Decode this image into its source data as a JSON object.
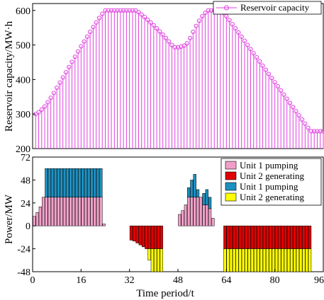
{
  "chart_data": [
    {
      "type": "line",
      "ylabel": "Reservoir capacity/MW·h",
      "ylim": [
        200,
        620
      ],
      "yticks": [
        200,
        300,
        400,
        500,
        600
      ],
      "xlim": [
        0,
        96
      ],
      "grid": false,
      "legend_position": "top-right",
      "series": [
        {
          "name": "Reservoir capacity",
          "color": "#e040e0",
          "marker": "circle",
          "x": [
            1,
            2,
            3,
            4,
            5,
            6,
            7,
            8,
            9,
            10,
            11,
            12,
            13,
            14,
            15,
            16,
            17,
            18,
            19,
            20,
            21,
            22,
            23,
            24,
            25,
            26,
            27,
            28,
            29,
            30,
            31,
            32,
            33,
            34,
            35,
            36,
            37,
            38,
            39,
            40,
            41,
            42,
            43,
            44,
            45,
            46,
            47,
            48,
            49,
            50,
            51,
            52,
            53,
            54,
            55,
            56,
            57,
            58,
            59,
            60,
            61,
            62,
            63,
            64,
            65,
            66,
            67,
            68,
            69,
            70,
            71,
            72,
            73,
            74,
            75,
            76,
            77,
            78,
            79,
            80,
            81,
            82,
            83,
            84,
            85,
            86,
            87,
            88,
            89,
            90,
            91,
            92,
            93,
            94,
            95,
            96
          ],
          "values": [
            300,
            305,
            313,
            322,
            334,
            347,
            361,
            376,
            391,
            406,
            421,
            436,
            451,
            466,
            481,
            496,
            510,
            524,
            538,
            552,
            565,
            578,
            590,
            600,
            600,
            600,
            600,
            600,
            600,
            600,
            600,
            600,
            600,
            600,
            595,
            588,
            581,
            573,
            565,
            557,
            548,
            539,
            530,
            520,
            510,
            500,
            493,
            493,
            495,
            498,
            505,
            520,
            538,
            555,
            570,
            583,
            593,
            600,
            600,
            600,
            600,
            600,
            593,
            583,
            572,
            560,
            548,
            536,
            524,
            512,
            500,
            488,
            476,
            464,
            452,
            440,
            428,
            416,
            404,
            392,
            380,
            368,
            356,
            344,
            332,
            320,
            308,
            296,
            284,
            272,
            260,
            250,
            250,
            250,
            250,
            250
          ]
        }
      ]
    },
    {
      "type": "bar",
      "xlabel": "Time period/t",
      "ylabel": "Power/MW",
      "ylim": [
        -48,
        72
      ],
      "yticks": [
        -48,
        -24,
        0,
        24,
        48,
        72
      ],
      "xlim": [
        0,
        96
      ],
      "xticks": [
        0,
        16,
        32,
        48,
        64,
        80,
        96
      ],
      "stacked": true,
      "grid": false,
      "legend_position": "top-right",
      "x": [
        1,
        2,
        3,
        4,
        5,
        6,
        7,
        8,
        9,
        10,
        11,
        12,
        13,
        14,
        15,
        16,
        17,
        18,
        19,
        20,
        21,
        22,
        23,
        24,
        25,
        26,
        27,
        28,
        29,
        30,
        31,
        32,
        33,
        34,
        35,
        36,
        37,
        38,
        39,
        40,
        41,
        42,
        43,
        44,
        45,
        46,
        47,
        48,
        49,
        50,
        51,
        52,
        53,
        54,
        55,
        56,
        57,
        58,
        59,
        60,
        61,
        62,
        63,
        64,
        65,
        66,
        67,
        68,
        69,
        70,
        71,
        72,
        73,
        74,
        75,
        76,
        77,
        78,
        79,
        80,
        81,
        82,
        83,
        84,
        85,
        86,
        87,
        88,
        89,
        90,
        91,
        92,
        93,
        94,
        95,
        96
      ],
      "series": [
        {
          "name": "Unit 1 pumping",
          "color": "#f0a0c8",
          "values": [
            10,
            14,
            20,
            30,
            30,
            30,
            30,
            30,
            30,
            30,
            30,
            30,
            30,
            30,
            30,
            30,
            30,
            30,
            30,
            30,
            30,
            30,
            30,
            2,
            0,
            0,
            0,
            0,
            0,
            0,
            0,
            0,
            0,
            0,
            0,
            0,
            0,
            0,
            0,
            0,
            0,
            0,
            0,
            0,
            0,
            0,
            0,
            0,
            0,
            0,
            0,
            0,
            0,
            0,
            0,
            0,
            0,
            0,
            0,
            0,
            0,
            0,
            0,
            0,
            0,
            0,
            0,
            0,
            0,
            0,
            0,
            0,
            0,
            0,
            0,
            0,
            0,
            0,
            0,
            0,
            0,
            0,
            0,
            0,
            0,
            0,
            0,
            0,
            0,
            0,
            0,
            0,
            0,
            0,
            0,
            0
          ]
        },
        {
          "name": "Unit 2 generating",
          "color": "#e00000",
          "values": [
            0,
            0,
            0,
            0,
            0,
            0,
            0,
            0,
            0,
            0,
            0,
            0,
            0,
            0,
            0,
            0,
            0,
            0,
            0,
            0,
            0,
            0,
            0,
            0,
            0,
            0,
            0,
            0,
            0,
            0,
            0,
            0,
            -15,
            -16,
            -18,
            -20,
            -22,
            -24,
            -24,
            -24,
            -24,
            -24,
            -24,
            0,
            0,
            0,
            0,
            0,
            0,
            0,
            0,
            0,
            0,
            0,
            0,
            0,
            0,
            0,
            0,
            0,
            0,
            0,
            0,
            -24,
            -24,
            -24,
            -24,
            -24,
            -24,
            -24,
            -24,
            -24,
            -24,
            -24,
            -24,
            -24,
            -24,
            -24,
            -24,
            -24,
            -24,
            -24,
            -24,
            -24,
            -24,
            -24,
            -24,
            -24,
            -24,
            -24,
            -24,
            -24,
            0,
            0,
            0,
            0
          ]
        },
        {
          "name": "Unit 1 pumping",
          "color": "#1e90c0",
          "values": [
            0,
            0,
            0,
            0,
            30,
            30,
            30,
            30,
            30,
            30,
            30,
            30,
            30,
            30,
            30,
            30,
            30,
            30,
            30,
            30,
            30,
            30,
            30,
            0,
            0,
            0,
            0,
            0,
            0,
            0,
            0,
            0,
            0,
            0,
            0,
            0,
            0,
            0,
            0,
            0,
            0,
            0,
            0,
            0,
            0,
            0,
            0,
            0,
            0,
            0,
            0,
            0,
            0,
            0,
            0,
            0,
            0,
            0,
            0,
            0,
            0,
            0,
            0,
            0,
            0,
            0,
            0,
            0,
            0,
            0,
            0,
            0,
            0,
            0,
            0,
            0,
            0,
            0,
            0,
            0,
            0,
            0,
            0,
            0,
            0,
            0,
            0,
            0,
            0,
            0,
            0,
            0,
            0,
            0,
            0,
            0
          ]
        },
        {
          "name": "Unit 2 generating",
          "color": "#ffff00",
          "values": [
            0,
            0,
            0,
            0,
            0,
            0,
            0,
            0,
            0,
            0,
            0,
            0,
            0,
            0,
            0,
            0,
            0,
            0,
            0,
            0,
            0,
            0,
            0,
            0,
            0,
            0,
            0,
            0,
            0,
            0,
            0,
            0,
            0,
            0,
            0,
            0,
            0,
            0,
            -12,
            -24,
            -24,
            -24,
            -24,
            0,
            0,
            0,
            0,
            0,
            0,
            0,
            0,
            0,
            0,
            0,
            0,
            0,
            0,
            0,
            0,
            0,
            0,
            0,
            0,
            -24,
            -24,
            -24,
            -24,
            -24,
            -24,
            -24,
            -24,
            -24,
            -24,
            -24,
            -24,
            -24,
            -24,
            -24,
            -24,
            -24,
            -24,
            -24,
            -24,
            -24,
            -24,
            -24,
            -24,
            -24,
            -24,
            -24,
            -24,
            -24,
            0,
            0,
            0,
            0
          ]
        }
      ],
      "pumping_profile_mid": [
        0,
        0,
        0,
        0,
        0,
        0,
        0,
        0,
        0,
        0,
        0,
        0,
        0,
        0,
        0,
        0,
        0,
        0,
        0,
        0,
        0,
        0,
        0,
        0,
        0,
        0,
        0,
        0,
        0,
        0,
        0,
        0,
        0,
        0,
        0,
        0,
        0,
        0,
        0,
        0,
        0,
        0,
        0,
        0,
        0,
        0,
        0,
        0,
        12,
        16,
        22,
        30,
        30,
        30,
        30,
        30,
        22,
        22,
        18,
        8,
        0,
        0,
        0,
        0,
        0,
        0,
        0,
        0,
        0,
        0,
        0,
        0,
        0,
        0,
        0,
        0,
        0,
        0,
        0,
        0,
        0,
        0,
        0,
        0,
        0,
        0,
        0,
        0,
        0,
        0,
        0,
        0,
        0,
        0,
        0,
        0
      ],
      "pumping_profile_mid_top": [
        0,
        0,
        0,
        0,
        0,
        0,
        0,
        0,
        0,
        0,
        0,
        0,
        0,
        0,
        0,
        0,
        0,
        0,
        0,
        0,
        0,
        0,
        0,
        0,
        0,
        0,
        0,
        0,
        0,
        0,
        0,
        0,
        0,
        0,
        0,
        0,
        0,
        0,
        0,
        0,
        0,
        0,
        0,
        0,
        0,
        0,
        0,
        0,
        0,
        0,
        0,
        10,
        18,
        24,
        8,
        0,
        12,
        16,
        12,
        0,
        0,
        0,
        0,
        0,
        0,
        0,
        0,
        0,
        0,
        0,
        0,
        0,
        0,
        0,
        0,
        0,
        0,
        0,
        0,
        0,
        0,
        0,
        0,
        0,
        0,
        0,
        0,
        0,
        0,
        0,
        0,
        0,
        0,
        0,
        0,
        0
      ]
    }
  ]
}
